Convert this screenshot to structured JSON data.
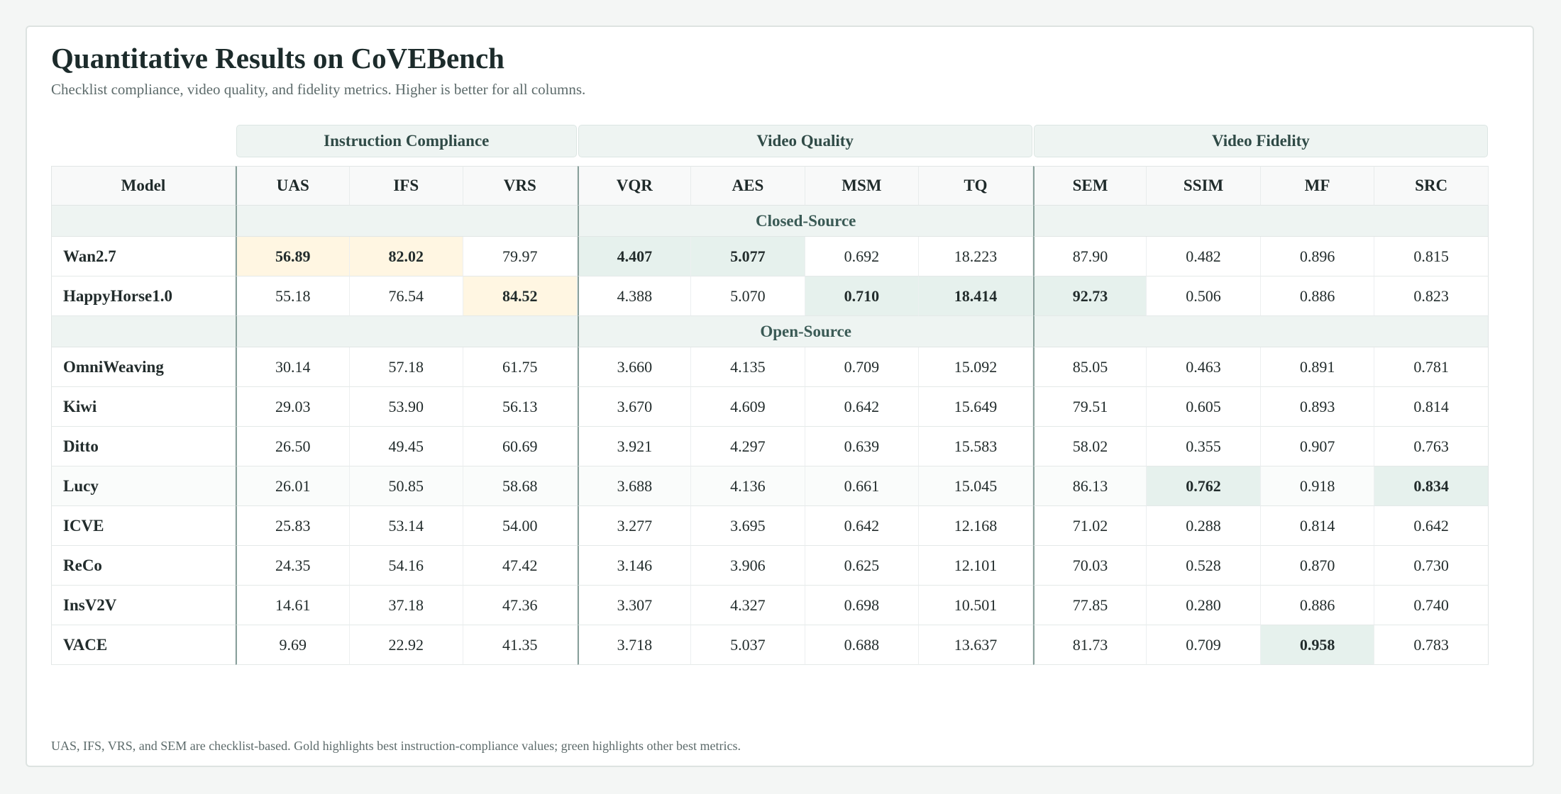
{
  "title": "Quantitative Results on CoVEBench",
  "subtitle": "Checklist compliance, video quality, and fidelity metrics. Higher is better for all columns.",
  "groups": {
    "instruction_compliance": "Instruction Compliance",
    "video_quality": "Video Quality",
    "video_fidelity": "Video Fidelity"
  },
  "columns": [
    "Model",
    "UAS",
    "IFS",
    "VRS",
    "VQR",
    "AES",
    "MSM",
    "TQ",
    "SEM",
    "SSIM",
    "MF",
    "SRC"
  ],
  "sections": {
    "closed": "Closed-Source",
    "open": "Open-Source"
  },
  "rows": [
    {
      "model": "Wan2.7",
      "values": [
        "56.89",
        "82.02",
        "79.97",
        "4.407",
        "5.077",
        "0.692",
        "18.223",
        "87.90",
        "0.482",
        "0.896",
        "0.815"
      ]
    },
    {
      "model": "HappyHorse1.0",
      "values": [
        "55.18",
        "76.54",
        "84.52",
        "4.388",
        "5.070",
        "0.710",
        "18.414",
        "92.73",
        "0.506",
        "0.886",
        "0.823"
      ]
    },
    {
      "model": "OmniWeaving",
      "values": [
        "30.14",
        "57.18",
        "61.75",
        "3.660",
        "4.135",
        "0.709",
        "15.092",
        "85.05",
        "0.463",
        "0.891",
        "0.781"
      ]
    },
    {
      "model": "Kiwi",
      "values": [
        "29.03",
        "53.90",
        "56.13",
        "3.670",
        "4.609",
        "0.642",
        "15.649",
        "79.51",
        "0.605",
        "0.893",
        "0.814"
      ]
    },
    {
      "model": "Ditto",
      "values": [
        "26.50",
        "49.45",
        "60.69",
        "3.921",
        "4.297",
        "0.639",
        "15.583",
        "58.02",
        "0.355",
        "0.907",
        "0.763"
      ]
    },
    {
      "model": "Lucy",
      "values": [
        "26.01",
        "50.85",
        "58.68",
        "3.688",
        "4.136",
        "0.661",
        "15.045",
        "86.13",
        "0.762",
        "0.918",
        "0.834"
      ]
    },
    {
      "model": "ICVE",
      "values": [
        "25.83",
        "53.14",
        "54.00",
        "3.277",
        "3.695",
        "0.642",
        "12.168",
        "71.02",
        "0.288",
        "0.814",
        "0.642"
      ]
    },
    {
      "model": "ReCo",
      "values": [
        "24.35",
        "54.16",
        "47.42",
        "3.146",
        "3.906",
        "0.625",
        "12.101",
        "70.03",
        "0.528",
        "0.870",
        "0.730"
      ]
    },
    {
      "model": "InsV2V",
      "values": [
        "14.61",
        "37.18",
        "47.36",
        "3.307",
        "4.327",
        "0.698",
        "10.501",
        "77.85",
        "0.280",
        "0.886",
        "0.740"
      ]
    },
    {
      "model": "VACE",
      "values": [
        "9.69",
        "22.92",
        "41.35",
        "3.718",
        "5.037",
        "0.688",
        "13.637",
        "81.73",
        "0.709",
        "0.958",
        "0.783"
      ]
    }
  ],
  "highlight_colors": {
    "gold": "#fff6e2",
    "green": "#e6f1ed"
  },
  "footnote": "UAS, IFS, VRS, and SEM are checklist-based. Gold highlights best instruction-compliance values; green highlights other best metrics."
}
